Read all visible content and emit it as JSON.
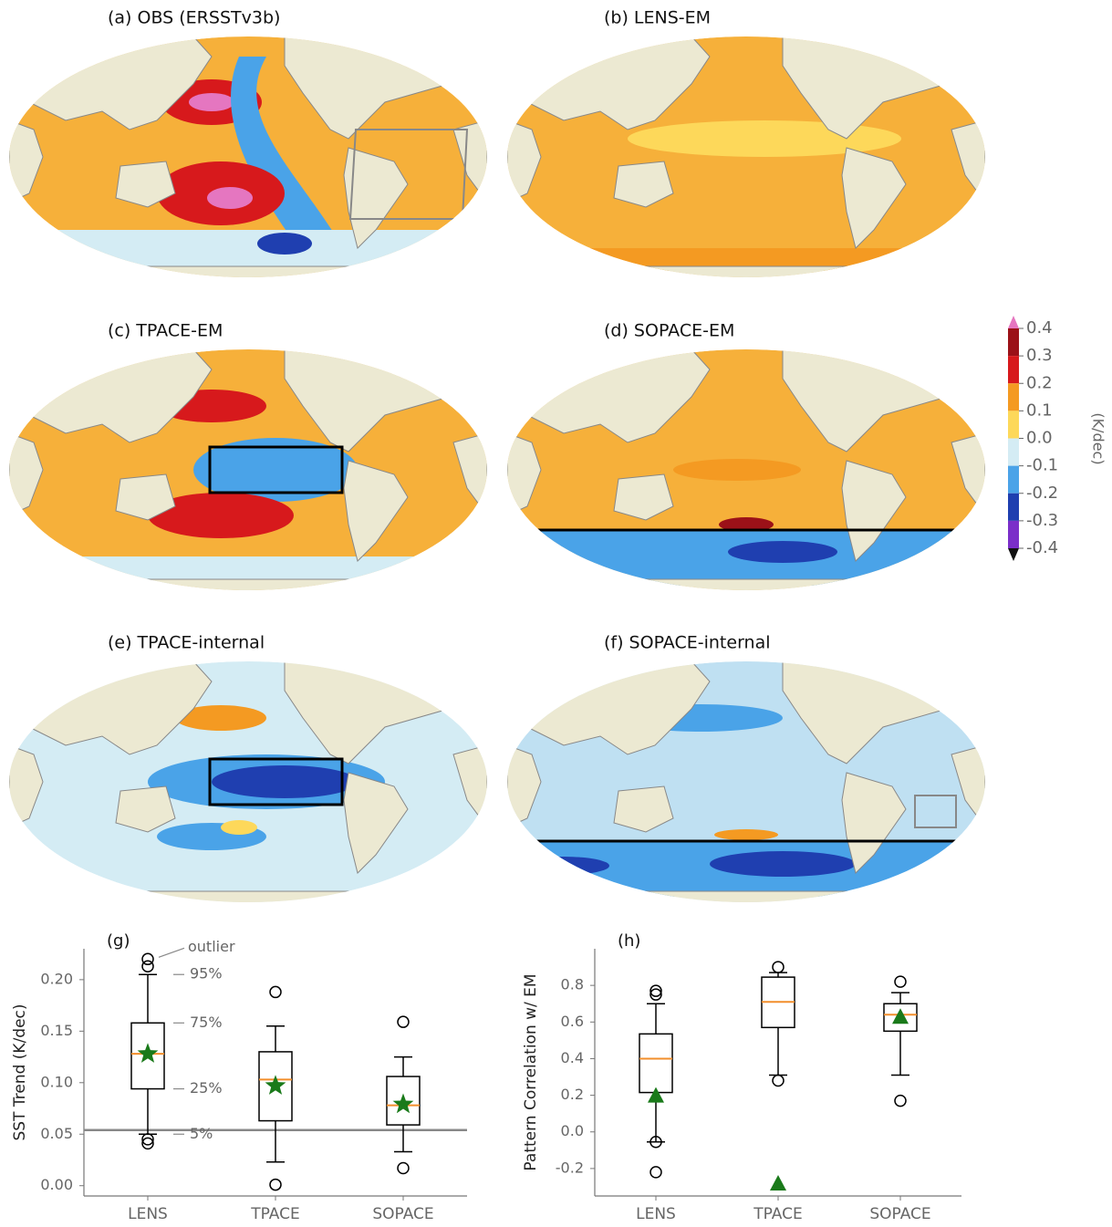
{
  "maps": [
    {
      "title": "(a) OBS (ERSSTv3b)"
    },
    {
      "title": "(b) LENS-EM"
    },
    {
      "title": "(c) TPACE-EM"
    },
    {
      "title": "(d) SOPACE-EM"
    },
    {
      "title": "(e) TPACE-internal"
    },
    {
      "title": "(f) SOPACE-internal"
    }
  ],
  "colorbar": {
    "label": "(K/dec)",
    "ticks": [
      0.4,
      0.3,
      0.2,
      0.1,
      {
        "value": 0,
        "label": "0.0"
      },
      -0.1,
      -0.2,
      -0.3,
      -0.4
    ],
    "colors": [
      "#9b1118",
      "#d7191c",
      "#f49a22",
      "#fdd85a",
      "#d4ecf4",
      "#4aa3e8",
      "#1f3fb0",
      "#7b2fc9"
    ],
    "extend_colors": [
      "#e576c0",
      "#111111"
    ]
  },
  "chart_data": [
    {
      "type": "box",
      "panel": "(g)",
      "ylabel": "SST Trend (K/dec)",
      "categories": [
        "LENS",
        "TPACE",
        "SOPACE"
      ],
      "boxes": [
        {
          "whislo": 0.05,
          "q1": 0.094,
          "med": 0.128,
          "q3": 0.158,
          "whishi": 0.205,
          "fliers": [
            0.22,
            0.213,
            0.045,
            0.041
          ]
        },
        {
          "whislo": 0.023,
          "q1": 0.063,
          "med": 0.103,
          "q3": 0.13,
          "whishi": 0.155,
          "fliers": [
            0.188,
            0.001
          ]
        },
        {
          "whislo": 0.033,
          "q1": 0.059,
          "med": 0.078,
          "q3": 0.106,
          "whishi": 0.125,
          "fliers": [
            0.159,
            0.017
          ]
        }
      ],
      "markers": {
        "shape": "star",
        "color": "#1a7a1a",
        "values": [
          0.128,
          0.097,
          0.079
        ]
      },
      "hline": 0.054,
      "hline_color": "#888888",
      "annotations": [
        "outlier",
        "95%",
        "75%",
        "25%",
        "5%"
      ],
      "ylim": [
        -0.01,
        0.23
      ],
      "yticks": [
        {
          "value": 0,
          "label": "0.00"
        },
        {
          "value": 0.05,
          "label": "0.05"
        },
        {
          "value": 0.1,
          "label": "0.10"
        },
        {
          "value": 0.15,
          "label": "0.15"
        },
        {
          "value": 0.2,
          "label": "0.20"
        }
      ]
    },
    {
      "type": "box",
      "panel": "(h)",
      "ylabel": "Pattern Correlation w/ EM",
      "categories": [
        "LENS",
        "TPACE",
        "SOPACE"
      ],
      "boxes": [
        {
          "whislo": -0.055,
          "q1": 0.215,
          "med": 0.4,
          "q3": 0.535,
          "whishi": 0.7,
          "fliers": [
            0.77,
            0.75,
            -0.055,
            -0.22
          ]
        },
        {
          "whislo": 0.31,
          "q1": 0.57,
          "med": 0.71,
          "q3": 0.845,
          "whishi": 0.87,
          "fliers": [
            0.9,
            0.28
          ]
        },
        {
          "whislo": 0.31,
          "q1": 0.55,
          "med": 0.64,
          "q3": 0.7,
          "whishi": 0.76,
          "fliers": [
            0.82,
            0.17
          ]
        }
      ],
      "markers": {
        "shape": "triangle",
        "color": "#1a7a1a",
        "values": [
          0.2,
          -0.28,
          0.63
        ]
      },
      "ylim": [
        -0.35,
        1.0
      ],
      "yticks": [
        -0.2,
        {
          "value": 0,
          "label": "0.0"
        },
        0.2,
        0.4,
        0.6,
        0.8
      ]
    }
  ]
}
